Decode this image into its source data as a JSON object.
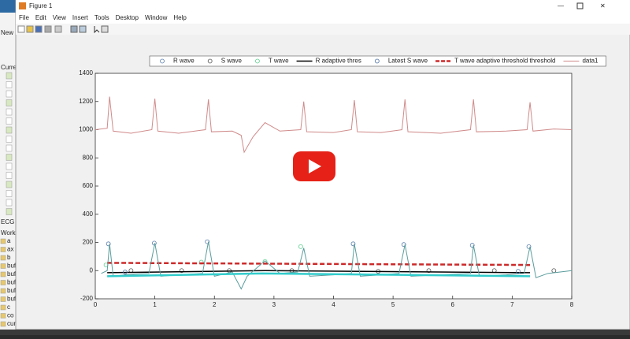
{
  "window": {
    "title": "Figure 1",
    "menu": [
      "File",
      "Edit",
      "View",
      "Insert",
      "Tools",
      "Desktop",
      "Window",
      "Help"
    ]
  },
  "sidebar": {
    "labels": [
      "New",
      "Curren",
      "ECG S",
      "Works"
    ],
    "variables": [
      "a",
      "ax",
      "b",
      "buff",
      "buff",
      "buff",
      "buff",
      "buff",
      "c",
      "co",
      "cum"
    ]
  },
  "chart_data": {
    "type": "line",
    "xlim": [
      0,
      8
    ],
    "xticks": [
      0,
      1,
      2,
      3,
      4,
      5,
      6,
      7,
      8
    ],
    "ylim": [
      -200,
      1400
    ],
    "yticks": [
      -200,
      0,
      200,
      400,
      600,
      800,
      1000,
      1200,
      1400
    ],
    "legend": "top",
    "series": [
      {
        "name": "R wave",
        "color": "#5a7fae",
        "marker": "o",
        "x": [
          0.22,
          0.99,
          1.88,
          4.33,
          5.18,
          6.33,
          7.28
        ],
        "values": [
          190,
          195,
          205,
          190,
          185,
          180,
          170
        ]
      },
      {
        "name": "S wave",
        "color": "#555555",
        "marker": "o",
        "x": [
          0.6,
          1.45,
          2.25,
          3.3,
          4.75,
          5.6,
          6.7,
          7.7
        ],
        "values": [
          0,
          0,
          0,
          0,
          -5,
          0,
          0,
          0
        ]
      },
      {
        "name": "T wave",
        "color": "#5fd08f",
        "marker": "o",
        "x": [
          0.18,
          1.78,
          2.85,
          3.45
        ],
        "values": [
          40,
          60,
          65,
          170
        ]
      },
      {
        "name": "R adaptive thres",
        "color": "#000000",
        "linewidth": 1.5,
        "x": [
          0.2,
          2.85,
          7.3
        ],
        "values": [
          -15,
          0,
          -15
        ]
      },
      {
        "name": "Latest S wave",
        "color": "#4a6fa5",
        "marker": "o",
        "x": [
          0.5,
          7.1
        ],
        "values": [
          -10,
          -5
        ]
      },
      {
        "name": "T wave adaptive threshold threshold",
        "color": "#cc2a2a",
        "linewidth": 2.5,
        "linestyle": "--",
        "x": [
          0.2,
          7.3
        ],
        "values": [
          55,
          40
        ]
      },
      {
        "name": "data1",
        "color": "#d08a8a",
        "linewidth": 1,
        "x": [
          0,
          0.2,
          0.24,
          0.3,
          0.6,
          0.95,
          1.0,
          1.05,
          1.4,
          1.85,
          1.9,
          1.95,
          2.3,
          2.45,
          2.5,
          2.65,
          2.85,
          3.1,
          3.45,
          3.5,
          3.55,
          4.0,
          4.3,
          4.35,
          4.4,
          4.8,
          5.15,
          5.2,
          5.25,
          5.8,
          6.3,
          6.35,
          6.4,
          6.9,
          7.25,
          7.3,
          7.35,
          7.7,
          8.0
        ],
        "values": [
          1000,
          1010,
          1235,
          990,
          975,
          1000,
          1220,
          990,
          975,
          1000,
          1215,
          985,
          990,
          960,
          840,
          950,
          1050,
          990,
          1000,
          1200,
          985,
          980,
          1000,
          1210,
          985,
          980,
          1000,
          1215,
          985,
          975,
          1000,
          1215,
          985,
          990,
          1000,
          1195,
          990,
          1005,
          1000
        ]
      },
      {
        "color": "#5a9c9c",
        "linewidth": 1,
        "x": [
          0.1,
          0.2,
          0.24,
          0.3,
          0.5,
          0.9,
          1.0,
          1.1,
          1.4,
          1.8,
          1.9,
          2.0,
          2.3,
          2.45,
          2.55,
          2.85,
          3.1,
          3.4,
          3.5,
          3.6,
          4.0,
          4.3,
          4.35,
          4.45,
          4.8,
          5.1,
          5.2,
          5.3,
          5.8,
          6.3,
          6.35,
          6.45,
          6.9,
          7.2,
          7.3,
          7.4,
          7.6,
          8.0
        ],
        "values": [
          -20,
          0,
          190,
          -40,
          -30,
          -20,
          195,
          -40,
          -30,
          -20,
          205,
          -40,
          -10,
          -130,
          -40,
          70,
          -20,
          -10,
          160,
          -40,
          -30,
          -20,
          190,
          -40,
          -30,
          -20,
          185,
          -40,
          -30,
          -20,
          180,
          -40,
          -30,
          -20,
          170,
          -50,
          -20,
          0
        ]
      },
      {
        "color": "#33cccc",
        "linewidth": 2.5,
        "x": [
          0.2,
          2.8,
          7.3
        ],
        "values": [
          -40,
          -20,
          -40
        ]
      }
    ]
  }
}
